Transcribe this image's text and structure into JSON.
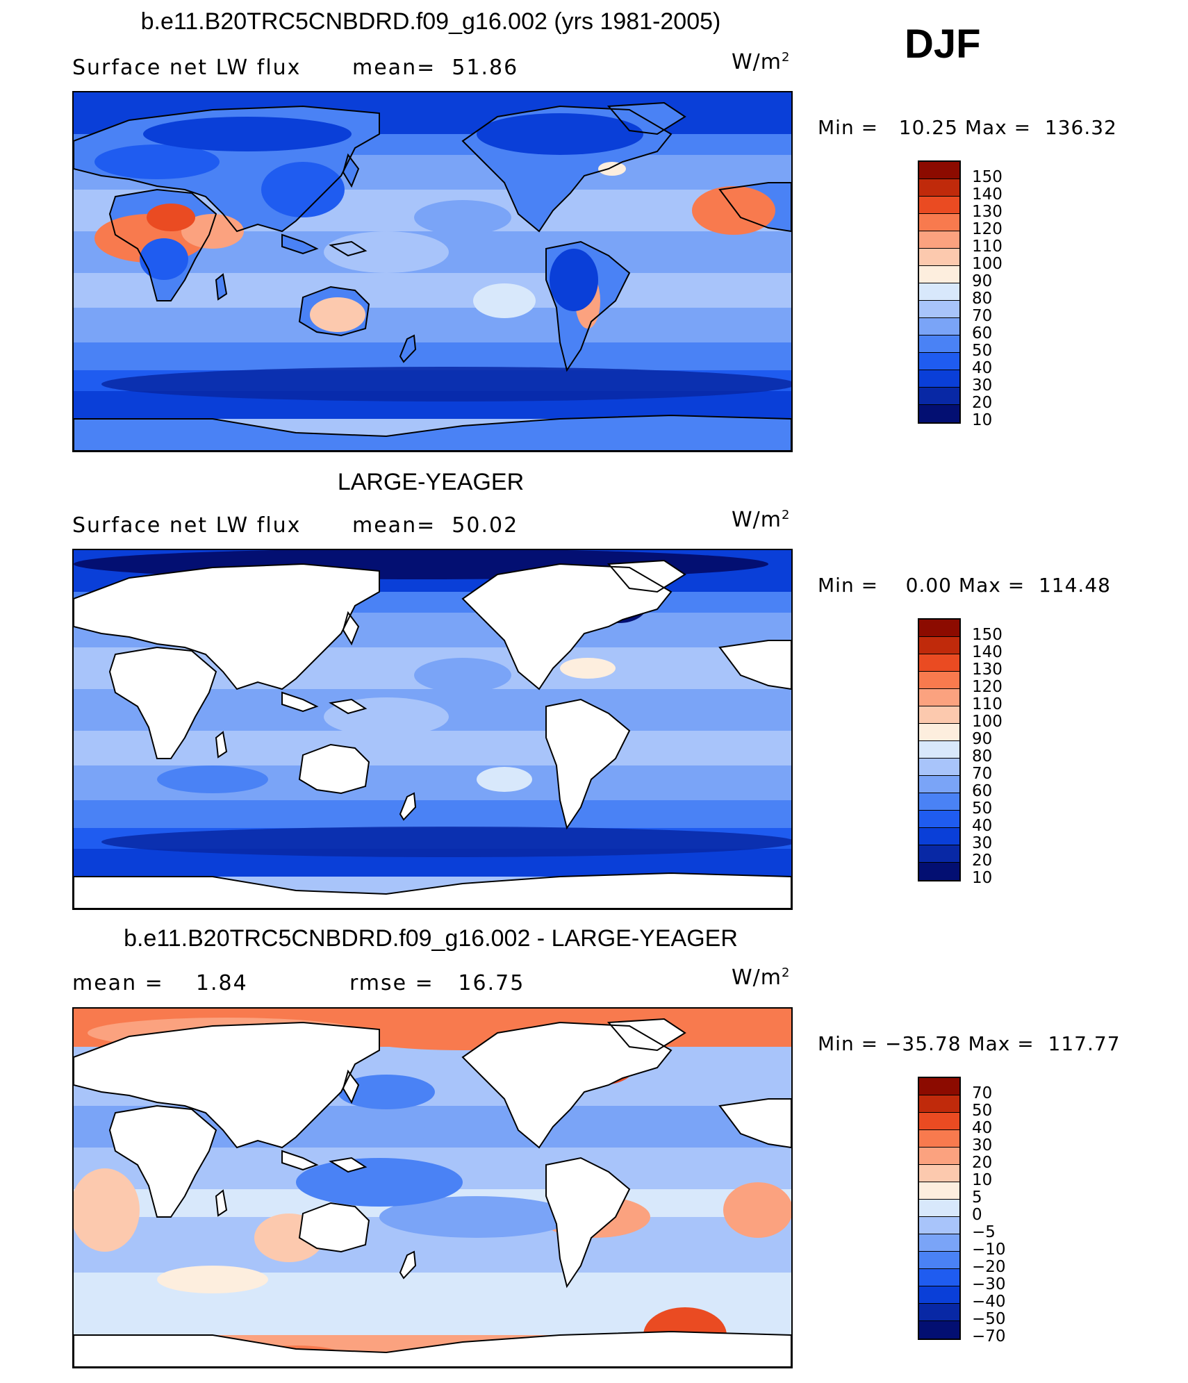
{
  "season": "DJF",
  "units_base": "W/m",
  "units_exp": "2",
  "colors": {
    "full": [
      "#030f72",
      "#0828a5",
      "#0a3fd8",
      "#1f5cf0",
      "#4a82f5",
      "#7aa4f7",
      "#a8c4fa",
      "#d8e8fb",
      "#fdeede",
      "#fcc9ae",
      "#fba27f",
      "#f87a4e",
      "#ea4b22",
      "#c02a0b",
      "#8c0b00"
    ],
    "diff": [
      "#030f72",
      "#0828a5",
      "#0a3fd8",
      "#1f5cf0",
      "#4a82f5",
      "#7aa4f7",
      "#a8c4fa",
      "#d8e8fb",
      "#fdeede",
      "#fcc9ae",
      "#fba27f",
      "#f87a4e",
      "#ea4b22",
      "#c02a0b",
      "#8c0b00"
    ]
  },
  "panels": [
    {
      "title": "b.e11.B20TRC5CNBDRD.f09_g16.002 (yrs 1981-2005)",
      "left_label": "Surface net LW flux",
      "center_label": "mean=",
      "center_value": "51.86",
      "min_label": "Min =",
      "min_value": "10.25",
      "max_label": "Max =",
      "max_value": "136.32",
      "levels": [
        "150",
        "140",
        "130",
        "120",
        "110",
        "100",
        "90",
        "80",
        "70",
        "60",
        "50",
        "40",
        "30",
        "20",
        "10"
      ],
      "map_type": "model"
    },
    {
      "title": "LARGE-YEAGER",
      "left_label": "Surface net LW flux",
      "center_label": "mean=",
      "center_value": "50.02",
      "min_label": "Min =",
      "min_value": "0.00",
      "max_label": "Max =",
      "max_value": "114.48",
      "levels": [
        "150",
        "140",
        "130",
        "120",
        "110",
        "100",
        "90",
        "80",
        "70",
        "60",
        "50",
        "40",
        "30",
        "20",
        "10"
      ],
      "map_type": "obs"
    },
    {
      "title": "b.e11.B20TRC5CNBDRD.f09_g16.002 - LARGE-YEAGER",
      "left_label": "mean =",
      "left_value": "1.84",
      "center_label": "rmse =",
      "center_value": "16.75",
      "min_label": "Min =",
      "min_value": "−35.78",
      "max_label": "Max =",
      "max_value": "117.77",
      "levels": [
        "70",
        "50",
        "40",
        "30",
        "20",
        "10",
        "5",
        "0",
        "−5",
        "−10",
        "−20",
        "−30",
        "−40",
        "−50",
        "−70"
      ],
      "map_type": "diff"
    }
  ]
}
